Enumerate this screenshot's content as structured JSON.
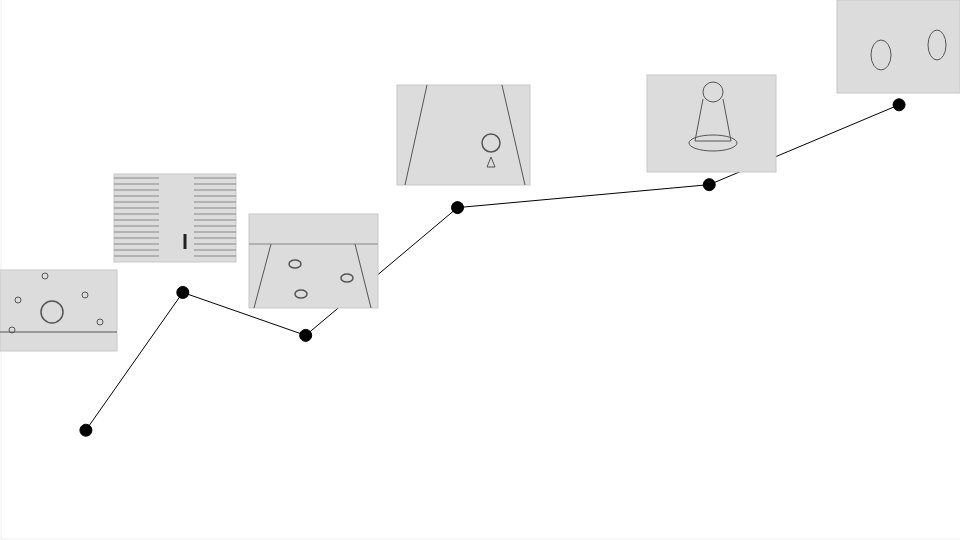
{
  "chart_data": {
    "type": "line",
    "x": [
      85,
      182,
      305,
      457,
      709,
      899
    ],
    "values": [
      109,
      247,
      204,
      332,
      355,
      435
    ],
    "xlim": [
      0,
      960
    ],
    "ylim": [
      0,
      540
    ],
    "color": "#000000",
    "marker": "circle",
    "line_style": "solid",
    "tick_labels": false,
    "grid": false
  }
}
